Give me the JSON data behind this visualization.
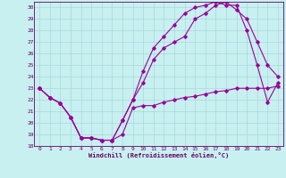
{
  "xlabel": "Windchill (Refroidissement éolien,°C)",
  "background_color": "#c8f0f0",
  "grid_color": "#a8d8d8",
  "line_color": "#990099",
  "xlim": [
    -0.5,
    23.5
  ],
  "ylim": [
    18,
    30.5
  ],
  "yticks": [
    18,
    19,
    20,
    21,
    22,
    23,
    24,
    25,
    26,
    27,
    28,
    29,
    30
  ],
  "xticks": [
    0,
    1,
    2,
    3,
    4,
    5,
    6,
    7,
    8,
    9,
    10,
    11,
    12,
    13,
    14,
    15,
    16,
    17,
    18,
    19,
    20,
    21,
    22,
    23
  ],
  "line1_x": [
    0,
    1,
    2,
    3,
    4,
    5,
    6,
    7,
    8,
    9,
    10,
    11,
    12,
    13,
    14,
    15,
    16,
    17,
    18,
    19,
    20,
    21,
    22,
    23
  ],
  "line1_y": [
    23.0,
    22.2,
    21.7,
    20.5,
    18.7,
    18.7,
    18.5,
    18.5,
    19.0,
    21.3,
    21.5,
    21.5,
    21.8,
    22.0,
    22.2,
    22.3,
    22.5,
    22.7,
    22.8,
    23.0,
    23.0,
    23.0,
    23.0,
    23.2
  ],
  "line2_x": [
    0,
    1,
    2,
    3,
    4,
    5,
    6,
    7,
    8,
    9,
    10,
    11,
    12,
    13,
    14,
    15,
    16,
    17,
    18,
    19,
    20,
    21,
    22,
    23
  ],
  "line2_y": [
    23.0,
    22.2,
    21.7,
    20.5,
    18.7,
    18.7,
    18.5,
    18.5,
    20.2,
    22.0,
    23.5,
    25.5,
    26.5,
    27.0,
    27.5,
    29.0,
    29.5,
    30.2,
    30.5,
    29.8,
    29.0,
    27.0,
    25.0,
    24.0
  ],
  "line3_x": [
    0,
    1,
    2,
    3,
    4,
    5,
    6,
    7,
    8,
    9,
    10,
    11,
    12,
    13,
    14,
    15,
    16,
    17,
    18,
    19,
    20,
    21,
    22,
    23
  ],
  "line3_y": [
    23.0,
    22.2,
    21.7,
    20.5,
    18.7,
    18.7,
    18.5,
    18.5,
    20.2,
    22.0,
    24.5,
    26.5,
    27.5,
    28.5,
    29.5,
    30.0,
    30.2,
    30.5,
    30.2,
    30.2,
    28.0,
    25.0,
    21.8,
    23.5
  ]
}
